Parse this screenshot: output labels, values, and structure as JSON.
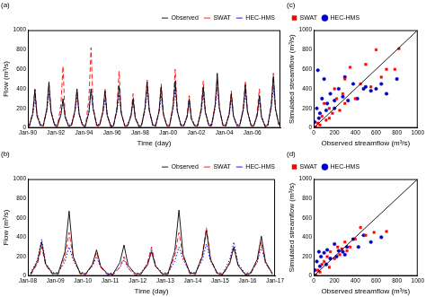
{
  "chart_data": [
    {
      "type": "line",
      "title": "(a)",
      "x_label": "Time (day)",
      "y_label": "Flow (m³/s)",
      "x": [
        1990.1,
        1990.35,
        1990.5,
        1990.65,
        1990.9,
        1991.1,
        1991.35,
        1991.5,
        1991.65,
        1991.9,
        1992.1,
        1992.35,
        1992.5,
        1992.65,
        1992.9,
        1993.1,
        1993.35,
        1993.5,
        1993.65,
        1993.9,
        1994.1,
        1994.35,
        1994.5,
        1994.65,
        1994.9,
        1995.1,
        1995.35,
        1995.5,
        1995.65,
        1995.9,
        1996.1,
        1996.35,
        1996.5,
        1996.65,
        1996.9,
        1997.1,
        1997.35,
        1997.5,
        1997.65,
        1997.9,
        1998.1,
        1998.35,
        1998.5,
        1998.65,
        1998.9,
        1999.1,
        1999.35,
        1999.5,
        1999.65,
        1999.9,
        2000.1,
        2000.35,
        2000.5,
        2000.65,
        2000.9,
        2001.1,
        2001.35,
        2001.5,
        2001.65,
        2001.9,
        2002.1,
        2002.35,
        2002.5,
        2002.65,
        2002.9,
        2003.1,
        2003.35,
        2003.5,
        2003.65,
        2003.9,
        2004.1,
        2004.35,
        2004.5,
        2004.65,
        2004.9,
        2005.1,
        2005.35,
        2005.5,
        2005.65,
        2005.9,
        2006.1,
        2006.35,
        2006.5,
        2006.65,
        2006.9,
        2007.1,
        2007.35,
        2007.5,
        2007.65,
        2007.9
      ],
      "series": [
        {
          "name": "Observed",
          "color": "#000000",
          "line_style": "solid",
          "values": [
            20,
            150,
            390,
            120,
            25,
            25,
            200,
            470,
            160,
            30,
            20,
            130,
            300,
            110,
            20,
            25,
            180,
            400,
            140,
            25,
            20,
            160,
            400,
            200,
            30,
            25,
            170,
            380,
            130,
            20,
            20,
            190,
            430,
            150,
            25,
            20,
            120,
            300,
            100,
            20,
            25,
            210,
            470,
            180,
            30,
            20,
            170,
            420,
            140,
            25,
            25,
            220,
            480,
            170,
            30,
            20,
            110,
            300,
            90,
            20,
            25,
            180,
            420,
            160,
            25,
            30,
            240,
            560,
            200,
            30,
            20,
            140,
            350,
            120,
            25,
            25,
            190,
            440,
            170,
            30,
            20,
            130,
            330,
            110,
            20,
            25,
            230,
            530,
            190,
            30
          ]
        },
        {
          "name": "SWAT",
          "color": "#ff0000",
          "line_style": "dashed",
          "values": [
            10,
            170,
            400,
            130,
            15,
            15,
            190,
            450,
            180,
            20,
            10,
            240,
            630,
            120,
            15,
            15,
            160,
            380,
            150,
            15,
            10,
            300,
            820,
            210,
            20,
            15,
            160,
            400,
            140,
            10,
            10,
            220,
            580,
            170,
            15,
            10,
            140,
            350,
            110,
            10,
            15,
            200,
            490,
            190,
            20,
            10,
            180,
            450,
            160,
            15,
            15,
            240,
            600,
            180,
            20,
            10,
            130,
            330,
            100,
            10,
            15,
            200,
            480,
            170,
            15,
            20,
            220,
            500,
            210,
            20,
            10,
            150,
            380,
            130,
            15,
            15,
            200,
            480,
            180,
            20,
            10,
            160,
            400,
            120,
            10,
            15,
            240,
            560,
            200,
            20
          ]
        },
        {
          "name": "HEC-HMS",
          "color": "#0000ff",
          "line_style": "dotted",
          "values": [
            30,
            140,
            300,
            150,
            35,
            35,
            170,
            350,
            170,
            40,
            30,
            150,
            280,
            130,
            30,
            35,
            160,
            320,
            150,
            35,
            30,
            170,
            380,
            190,
            40,
            35,
            150,
            290,
            140,
            30,
            30,
            170,
            340,
            160,
            35,
            30,
            130,
            260,
            120,
            30,
            35,
            180,
            390,
            180,
            40,
            30,
            160,
            330,
            150,
            35,
            35,
            190,
            400,
            170,
            40,
            30,
            120,
            250,
            110,
            30,
            35,
            160,
            340,
            160,
            35,
            40,
            200,
            420,
            190,
            40,
            30,
            140,
            290,
            130,
            35,
            35,
            170,
            360,
            170,
            40,
            30,
            130,
            280,
            120,
            30,
            35,
            200,
            410,
            190,
            40
          ]
        }
      ],
      "xlim": [
        1990,
        2008
      ],
      "xticks": [
        {
          "value": 1990,
          "label": "Jan-90"
        },
        {
          "value": 1992,
          "label": "Jan-92"
        },
        {
          "value": 1994,
          "label": "Jan-94"
        },
        {
          "value": 1996,
          "label": "Jan-96"
        },
        {
          "value": 1998,
          "label": "Jan-98"
        },
        {
          "value": 2000,
          "label": "Jan-00"
        },
        {
          "value": 2002,
          "label": "Jan-02"
        },
        {
          "value": 2004,
          "label": "Jan-04"
        },
        {
          "value": 2006,
          "label": "Jan-06"
        }
      ],
      "ylim": [
        0,
        1000
      ],
      "yticks": [
        0,
        200,
        400,
        600,
        800,
        1000
      ],
      "grid": false,
      "legend": "upper right"
    },
    {
      "type": "line",
      "title": "(b)",
      "x_label": "Time (day)",
      "y_label": "Flow (m³/s)",
      "x": [
        2008.1,
        2008.35,
        2008.5,
        2008.65,
        2008.9,
        2009.1,
        2009.35,
        2009.5,
        2009.65,
        2009.9,
        2010.1,
        2010.35,
        2010.5,
        2010.65,
        2010.9,
        2011.1,
        2011.35,
        2011.5,
        2011.65,
        2011.9,
        2012.1,
        2012.35,
        2012.5,
        2012.65,
        2012.9,
        2013.1,
        2013.35,
        2013.5,
        2013.65,
        2013.9,
        2014.1,
        2014.35,
        2014.5,
        2014.65,
        2014.9,
        2015.1,
        2015.35,
        2015.5,
        2015.65,
        2015.9,
        2016.1,
        2016.35,
        2016.5,
        2016.65,
        2016.9
      ],
      "series": [
        {
          "name": "Observed",
          "color": "#000000",
          "line_style": "solid",
          "values": [
            20,
            150,
            350,
            120,
            25,
            25,
            250,
            670,
            200,
            30,
            20,
            120,
            270,
            100,
            20,
            20,
            140,
            320,
            110,
            25,
            20,
            110,
            250,
            100,
            20,
            25,
            260,
            680,
            220,
            30,
            25,
            200,
            470,
            170,
            25,
            20,
            130,
            300,
            110,
            20,
            25,
            170,
            410,
            150,
            25
          ]
        },
        {
          "name": "SWAT",
          "color": "#ff0000",
          "line_style": "dashed",
          "values": [
            10,
            130,
            300,
            110,
            15,
            15,
            200,
            450,
            190,
            20,
            10,
            110,
            250,
            90,
            10,
            10,
            90,
            200,
            80,
            10,
            10,
            130,
            300,
            100,
            15,
            15,
            210,
            450,
            200,
            20,
            15,
            220,
            500,
            180,
            15,
            10,
            140,
            300,
            120,
            10,
            15,
            150,
            350,
            140,
            15
          ]
        },
        {
          "name": "HEC-HMS",
          "color": "#0000ff",
          "line_style": "dotted",
          "values": [
            30,
            170,
            380,
            130,
            35,
            35,
            150,
            300,
            160,
            40,
            30,
            100,
            200,
            90,
            30,
            30,
            90,
            170,
            80,
            30,
            30,
            130,
            280,
            110,
            30,
            35,
            150,
            300,
            170,
            40,
            35,
            160,
            330,
            150,
            35,
            30,
            170,
            350,
            130,
            30,
            35,
            140,
            300,
            130,
            35
          ]
        }
      ],
      "xlim": [
        2008,
        2017
      ],
      "xticks": [
        {
          "value": 2008,
          "label": "Jan-08"
        },
        {
          "value": 2009,
          "label": "Jan-09"
        },
        {
          "value": 2010,
          "label": "Jan-10"
        },
        {
          "value": 2011,
          "label": "Jan-11"
        },
        {
          "value": 2012,
          "label": "Jan-12"
        },
        {
          "value": 2013,
          "label": "Jan-13"
        },
        {
          "value": 2014,
          "label": "Jan-14"
        },
        {
          "value": 2015,
          "label": "Jan-15"
        },
        {
          "value": 2016,
          "label": "Jan-16"
        },
        {
          "value": 2017,
          "label": "Jan-17"
        }
      ],
      "ylim": [
        0,
        1000
      ],
      "yticks": [
        0,
        200,
        400,
        600,
        800,
        1000
      ],
      "grid": false,
      "legend": "upper right"
    },
    {
      "type": "scatter",
      "title": "(c)",
      "x_label": "Observed streamflow (m³/s)",
      "y_label": "Simulated streamflow (m³/s)",
      "series": [
        {
          "name": "SWAT",
          "color": "#ff0000",
          "marker": "square",
          "x": [
            20,
            40,
            60,
            80,
            100,
            120,
            150,
            180,
            200,
            220,
            250,
            280,
            300,
            350,
            400,
            450,
            500,
            550,
            600,
            650,
            700,
            780,
            820,
            150,
            300
          ],
          "values": [
            10,
            50,
            30,
            120,
            250,
            80,
            200,
            150,
            400,
            300,
            180,
            350,
            500,
            620,
            300,
            450,
            650,
            420,
            800,
            520,
            600,
            600,
            810,
            100,
            250
          ]
        },
        {
          "name": "HEC-HMS",
          "color": "#0000cc",
          "marker": "circle",
          "x": [
            10,
            30,
            40,
            60,
            80,
            100,
            130,
            160,
            200,
            240,
            280,
            300,
            330,
            380,
            420,
            480,
            500,
            550,
            600,
            650,
            700,
            800,
            200,
            120,
            50
          ],
          "values": [
            60,
            200,
            590,
            150,
            300,
            500,
            250,
            350,
            200,
            400,
            320,
            520,
            280,
            450,
            300,
            400,
            420,
            380,
            400,
            450,
            350,
            500,
            280,
            180,
            100
          ]
        },
        {
          "type": "line",
          "color": "#000000",
          "line_style": "solid",
          "x": [
            0,
            1000
          ],
          "values": [
            0,
            1000
          ]
        }
      ],
      "xlim": [
        0,
        1000
      ],
      "xticks": [
        0,
        200,
        400,
        600,
        800,
        1000
      ],
      "ylim": [
        0,
        1000
      ],
      "yticks": [
        0,
        200,
        400,
        600,
        800,
        1000
      ],
      "grid": false,
      "legend": "upper left"
    },
    {
      "type": "scatter",
      "title": "(d)",
      "x_label": "Observed streamflow (m³/s)",
      "y_label": "Simulated streamflow (m³/s)",
      "series": [
        {
          "name": "SWAT",
          "color": "#ff0000",
          "marker": "square",
          "x": [
            20,
            40,
            60,
            80,
            100,
            130,
            160,
            200,
            230,
            270,
            300,
            350,
            400,
            450,
            500,
            580,
            700,
            150,
            250,
            320
          ],
          "values": [
            10,
            60,
            40,
            120,
            150,
            200,
            250,
            180,
            300,
            280,
            350,
            300,
            380,
            500,
            420,
            450,
            460,
            90,
            220,
            260
          ]
        },
        {
          "name": "HEC-HMS",
          "color": "#0000cc",
          "marker": "circle",
          "x": [
            10,
            30,
            50,
            70,
            100,
            130,
            160,
            200,
            240,
            280,
            320,
            380,
            430,
            480,
            550,
            650,
            120,
            60,
            220,
            300
          ],
          "values": [
            60,
            150,
            250,
            200,
            240,
            270,
            180,
            330,
            260,
            250,
            300,
            380,
            300,
            420,
            350,
            400,
            120,
            100,
            200,
            220
          ]
        },
        {
          "type": "line",
          "color": "#000000",
          "line_style": "solid",
          "x": [
            0,
            1000
          ],
          "values": [
            0,
            1000
          ]
        }
      ],
      "xlim": [
        0,
        1000
      ],
      "xticks": [
        0,
        200,
        400,
        600,
        800,
        1000
      ],
      "ylim": [
        0,
        1000
      ],
      "yticks": [
        0,
        200,
        400,
        600,
        800,
        1000
      ],
      "grid": false,
      "legend": "upper left"
    }
  ]
}
